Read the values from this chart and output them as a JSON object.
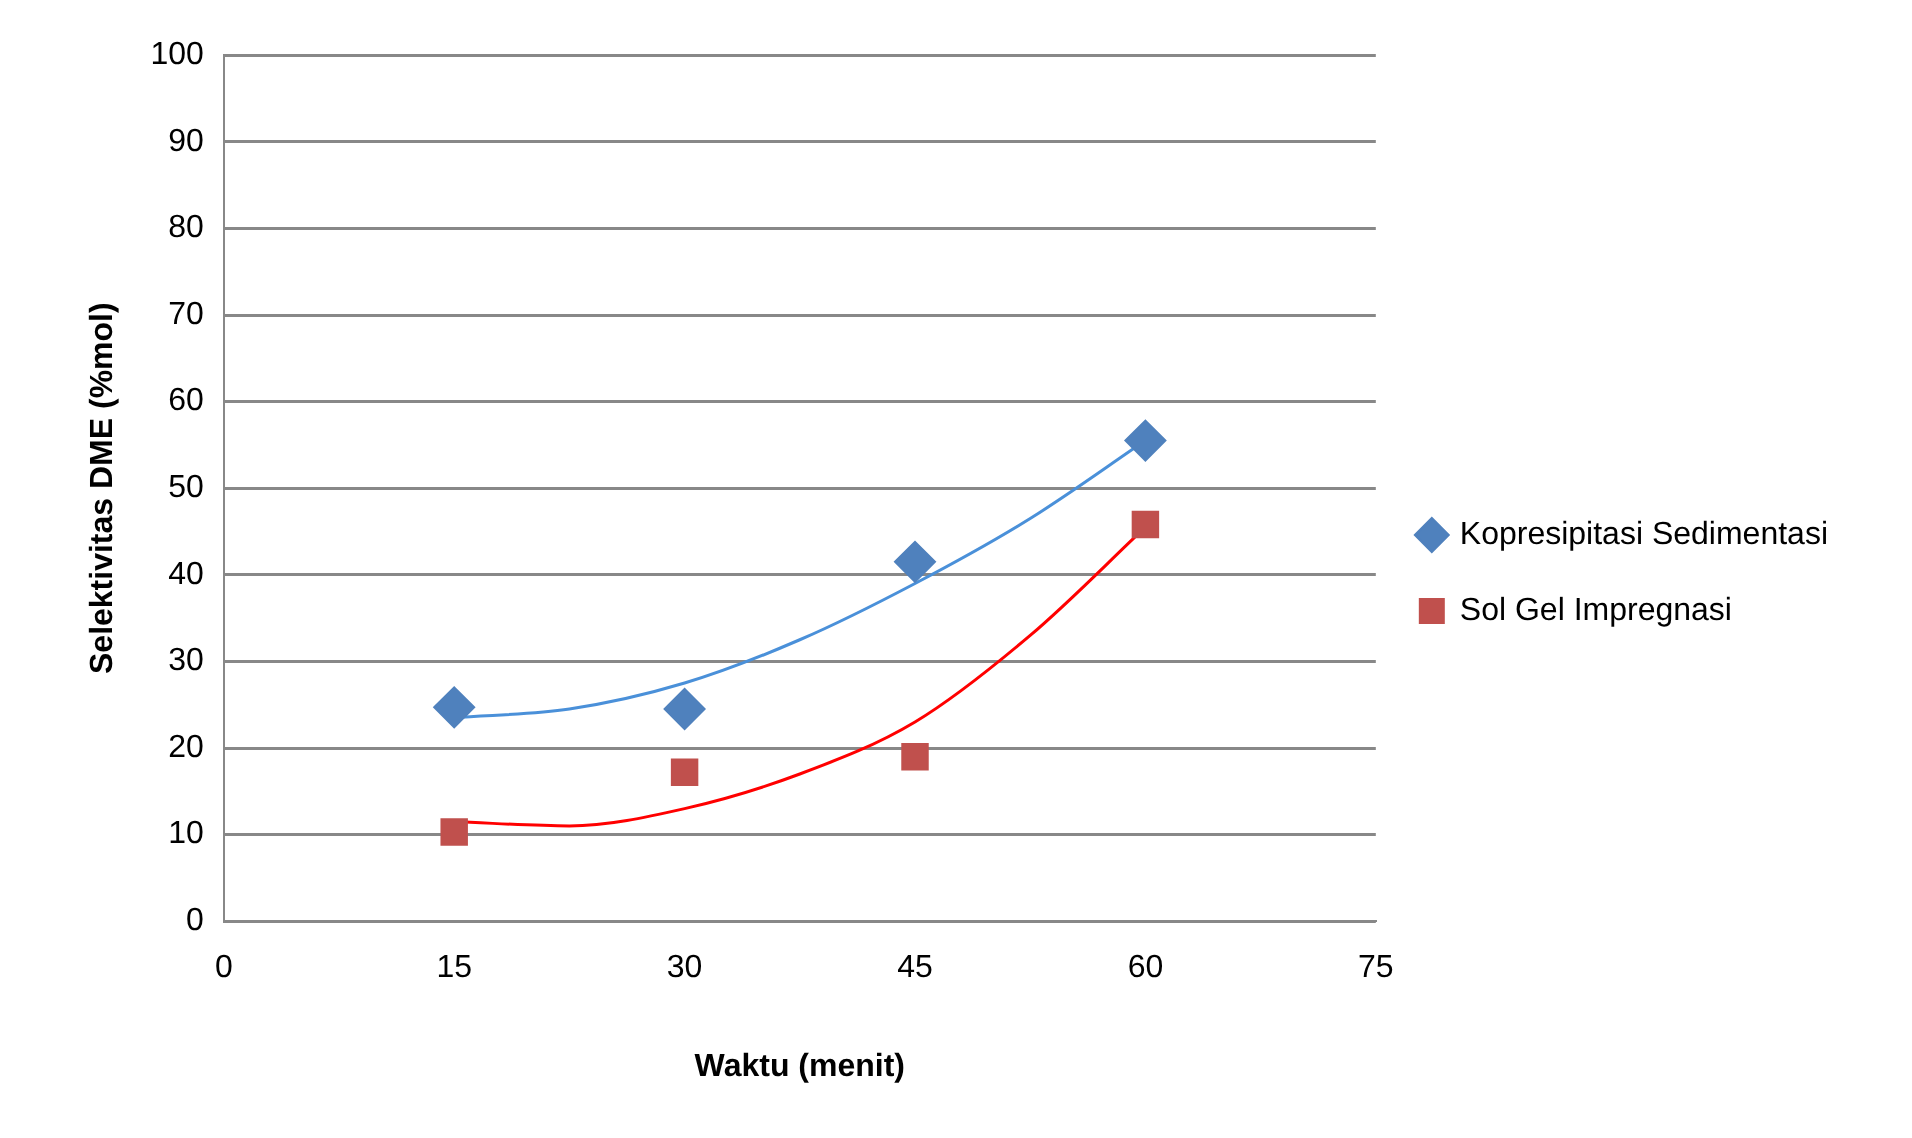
{
  "chart_data": {
    "type": "scatter",
    "xlabel": "Waktu (menit)",
    "ylabel": "Selektivitas DME (%mol)",
    "x": [
      15,
      30,
      45,
      60
    ],
    "series": [
      {
        "name": "Kopresipitasi Sedimentasi",
        "color": "#4f81bd",
        "values": [
          24.7,
          24.5,
          41.5,
          55.5
        ],
        "marker": "diamond"
      },
      {
        "name": "Sol Gel Impregnasi",
        "color": "#c0504d",
        "values": [
          10.3,
          17.2,
          19.0,
          45.8
        ],
        "marker": "square"
      },
      {
        "type": "line",
        "color": "#4a90d9",
        "x": [
          15,
          22.5,
          30,
          37.5,
          45,
          52.5,
          60
        ],
        "values": [
          23.5,
          24.5,
          27.5,
          32.5,
          39,
          46.5,
          55.5
        ],
        "marker": "none"
      },
      {
        "type": "line",
        "color": "#ff0000",
        "x": [
          15,
          22.5,
          30,
          37.5,
          45,
          52.5,
          60
        ],
        "values": [
          11.5,
          11,
          13,
          17,
          23,
          33,
          45.5
        ],
        "marker": "none"
      }
    ],
    "xlim": [
      0,
      75
    ],
    "xticks": [
      0,
      15,
      30,
      45,
      60,
      75
    ],
    "ylim": [
      0,
      100
    ],
    "yticks": [
      0,
      10,
      20,
      30,
      40,
      50,
      60,
      70,
      80,
      90,
      100
    ],
    "grid": "y",
    "legend": "right"
  }
}
